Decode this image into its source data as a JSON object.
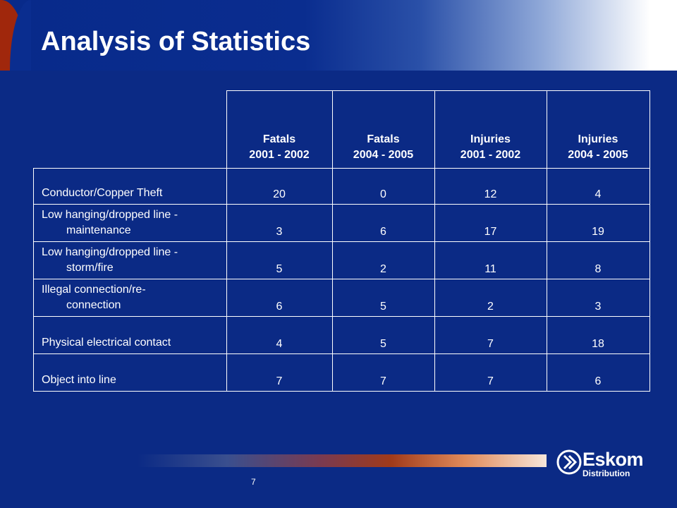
{
  "title": "Analysis of Statistics",
  "table": {
    "headers": [
      {
        "line1": "Fatals",
        "line2": "2001 - 2002"
      },
      {
        "line1": "Fatals",
        "line2": "2004 - 2005"
      },
      {
        "line1": "Injuries",
        "line2": "2001 - 2002"
      },
      {
        "line1": "Injuries",
        "line2": "2004 - 2005"
      }
    ],
    "rows": [
      {
        "label1": "Conductor/Copper Theft",
        "label2": "",
        "values": [
          "20",
          "0",
          "12",
          "4"
        ]
      },
      {
        "label1": "Low hanging/dropped line -",
        "label2": "maintenance",
        "values": [
          "3",
          "6",
          "17",
          "19"
        ]
      },
      {
        "label1": "Low hanging/dropped line -",
        "label2": "storm/fire",
        "values": [
          "5",
          "2",
          "11",
          "8"
        ]
      },
      {
        "label1": "Illegal connection/re-",
        "label2": "connection",
        "values": [
          "6",
          "5",
          "2",
          "3"
        ]
      },
      {
        "label1": "Physical electrical contact",
        "label2": "",
        "values": [
          "4",
          "5",
          "7",
          "18"
        ]
      },
      {
        "label1": "Object into line",
        "label2": "",
        "values": [
          "7",
          "7",
          "7",
          "6"
        ]
      }
    ]
  },
  "footer": {
    "page_number": "7",
    "logo_name": "Eskom",
    "logo_sub": "Distribution"
  },
  "colors": {
    "background": "#0b2a85",
    "accent_red": "#a0270c",
    "text": "#ffffff"
  },
  "icons": [
    "eskom-logo-icon"
  ]
}
